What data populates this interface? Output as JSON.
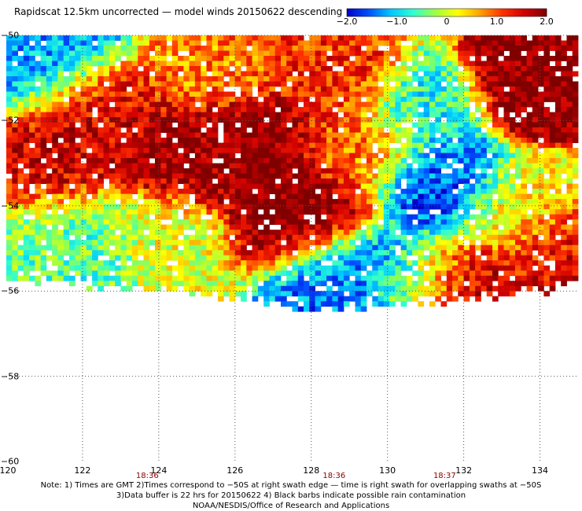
{
  "title": "Rapidscat 12.5km uncorrected — model winds 20150622 descending",
  "colorbar": {
    "labels": [
      "−2.0",
      "−1.0",
      "0",
      "1.0",
      "2.0"
    ],
    "values": [
      -2.0,
      -1.0,
      0,
      1.0,
      2.0
    ],
    "min": -2.0,
    "max": 2.0,
    "colors": [
      "#0000c8",
      "#0050ff",
      "#00c8ff",
      "#30ffd0",
      "#a0ff40",
      "#ffff00",
      "#ffa000",
      "#ff3000",
      "#d00000",
      "#800000"
    ]
  },
  "chart_data": {
    "type": "heatmap",
    "xlim": [
      120,
      135
    ],
    "ylim": [
      -60,
      -50
    ],
    "x_ticks": [
      120,
      122,
      124,
      126,
      128,
      130,
      132,
      134
    ],
    "x_tick_labels": [
      "120",
      "122",
      "124",
      "126",
      "128",
      "130",
      "132",
      "134"
    ],
    "y_ticks": [
      -50,
      -52,
      -54,
      -56,
      -58,
      -60
    ],
    "y_tick_labels": [
      "−50",
      "−52",
      "−54",
      "−56",
      "−58",
      "−60"
    ],
    "grid": true,
    "time_labels": [
      {
        "x": 123.7,
        "label": "18:36"
      },
      {
        "x": 128.6,
        "label": "18:36"
      },
      {
        "x": 131.5,
        "label": "18:37"
      }
    ],
    "bottom_edge": [
      [
        120,
        -55.7
      ],
      [
        122,
        -55.85
      ],
      [
        124,
        -56.05
      ],
      [
        126,
        -56.2
      ],
      [
        128,
        -56.45
      ],
      [
        130,
        -56.35
      ],
      [
        132,
        -56.25
      ],
      [
        134,
        -56.0
      ],
      [
        135,
        -55.9
      ]
    ],
    "features": [
      {
        "lon": 126.4,
        "lat": -52.5,
        "value": 2.0
      },
      {
        "lon": 127.8,
        "lat": -54.3,
        "value": 2.0
      },
      {
        "lon": 124.9,
        "lat": -52.8,
        "value": 1.8
      },
      {
        "lon": 120.8,
        "lat": -53.3,
        "value": 1.6
      },
      {
        "lon": 122.3,
        "lat": -51.6,
        "value": 1.5
      },
      {
        "lon": 133.8,
        "lat": -51.1,
        "value": 2.0
      },
      {
        "lon": 128.6,
        "lat": -50.9,
        "value": 1.2
      },
      {
        "lon": 125.5,
        "lat": -50.8,
        "value": 0.8
      },
      {
        "lon": 129.4,
        "lat": -52.6,
        "value": 0.9
      },
      {
        "lon": 131.4,
        "lat": -53.4,
        "value": -1.6
      },
      {
        "lon": 131.0,
        "lat": -51.8,
        "value": -0.8
      },
      {
        "lon": 121.3,
        "lat": -50.6,
        "value": -1.3
      },
      {
        "lon": 122.0,
        "lat": -55.2,
        "value": -0.6
      },
      {
        "lon": 128.8,
        "lat": -55.6,
        "value": -1.4
      },
      {
        "lon": 130.5,
        "lat": -55.8,
        "value": -1.2
      },
      {
        "lon": 133.5,
        "lat": -54.0,
        "value": 0.2
      },
      {
        "lon": 134.6,
        "lat": -55.0,
        "value": 1.4
      },
      {
        "lon": 131.5,
        "lat": -56.0,
        "value": 1.8
      },
      {
        "lon": 121.0,
        "lat": -54.6,
        "value": -0.4
      },
      {
        "lon": 124.0,
        "lat": -54.9,
        "value": 0.1
      }
    ]
  },
  "notes": [
    "Note: 1) Times are GMT 2)Times correspond to −50S at right swath edge — time is right swath for overlapping swaths at −50S",
    "3)Data buffer is 22 hrs for 20150622 4) Black barbs indicate possible rain contamination",
    "NOAA/NESDIS/Office of Research and Applications"
  ]
}
